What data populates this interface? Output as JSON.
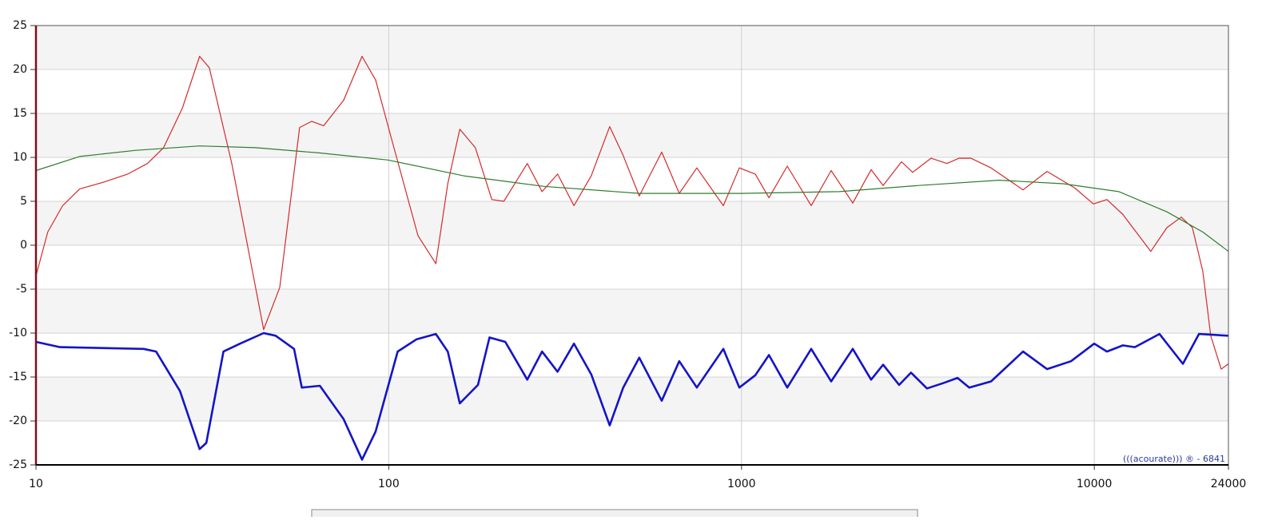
{
  "chart_data": {
    "type": "line",
    "log_x": true,
    "grid": true,
    "xlim": [
      10,
      24000
    ],
    "ylim": [
      -25,
      25
    ],
    "xticks": [
      10,
      100,
      1000,
      10000,
      24000
    ],
    "yticks": [
      -25,
      -20,
      -15,
      -10,
      -5,
      0,
      5,
      10,
      15,
      20,
      25
    ],
    "watermark": "(((acourate))) ® - 6841",
    "series": [
      {
        "color": "#d42a2a",
        "line_width": 1.2,
        "x": [
          10,
          10.8,
          11.9,
          13.3,
          15.6,
          18.2,
          20.7,
          23,
          26,
          29.1,
          31,
          35.9,
          44.2,
          49.1,
          55.9,
          60.5,
          65.4,
          74.5,
          84,
          91.8,
          102,
          121,
          136,
          147,
          159,
          176,
          196,
          212,
          247,
          272,
          301,
          335,
          375,
          423,
          462,
          513,
          594,
          666,
          747,
          888,
          986,
          1094,
          1196,
          1348,
          1576,
          1795,
          2067,
          2330,
          2520,
          2841,
          3055,
          3445,
          3823,
          4135,
          4467,
          5097,
          6281,
          7345,
          8815,
          9940,
          10860,
          12050,
          13370,
          14460,
          16060,
          17640,
          18970,
          20310,
          21380,
          22890,
          24000
        ],
        "values": [
          -3.5,
          1.5,
          4.5,
          6.4,
          7.2,
          8.1,
          9.3,
          11.1,
          15.6,
          21.5,
          20.2,
          9.3,
          -9.6,
          -4.8,
          13.4,
          14.1,
          13.6,
          16.5,
          21.5,
          18.8,
          12,
          1.1,
          -2.1,
          7,
          13.2,
          11.1,
          5.2,
          5,
          9.3,
          6.1,
          8.1,
          4.5,
          7.9,
          13.5,
          10.2,
          5.6,
          10.6,
          5.9,
          8.8,
          4.5,
          8.8,
          8.1,
          5.4,
          9,
          4.5,
          8.5,
          4.8,
          8.6,
          6.8,
          9.5,
          8.3,
          9.9,
          9.3,
          9.9,
          9.9,
          8.8,
          6.3,
          8.4,
          6.5,
          4.7,
          5.2,
          3.5,
          1.1,
          -0.7,
          2,
          3.2,
          2,
          -3,
          -10.3,
          -14.1,
          -13.5
        ]
      },
      {
        "color": "#2e7d2e",
        "line_width": 1.2,
        "x": [
          10,
          13.3,
          19.2,
          29.1,
          42,
          63.8,
          99.5,
          163,
          275,
          513,
          1000,
          1893,
          3185,
          5372,
          8153,
          11740,
          16060,
          20310,
          24000
        ],
        "values": [
          8.5,
          10.1,
          10.8,
          11.3,
          11.1,
          10.5,
          9.7,
          7.9,
          6.7,
          5.9,
          5.9,
          6.1,
          6.8,
          7.4,
          7,
          6.1,
          3.8,
          1.5,
          -0.7
        ]
      },
      {
        "color": "#1414c8",
        "line_width": 2.6,
        "x": [
          10,
          11.7,
          20.2,
          21.9,
          25.6,
          29.1,
          30.4,
          34,
          37.9,
          44.2,
          47.8,
          53.9,
          56.7,
          63.8,
          74.5,
          84,
          91.8,
          106,
          120,
          136,
          147,
          159,
          179,
          193,
          214,
          247,
          272,
          301,
          335,
          375,
          423,
          462,
          513,
          594,
          666,
          747,
          888,
          986,
          1094,
          1196,
          1348,
          1576,
          1795,
          2067,
          2330,
          2520,
          2798,
          3023,
          3355,
          3727,
          4095,
          4421,
          5097,
          6281,
          7345,
          8590,
          9993,
          10860,
          12050,
          13030,
          15300,
          17830,
          19800,
          24000
        ],
        "values": [
          -11,
          -11.6,
          -11.8,
          -12.1,
          -16.6,
          -23.2,
          -22.5,
          -12.1,
          -11.2,
          -10,
          -10.3,
          -11.8,
          -16.2,
          -16,
          -19.8,
          -24.4,
          -21.2,
          -12.1,
          -10.7,
          -10.1,
          -12.1,
          -18,
          -15.9,
          -10.5,
          -11,
          -15.3,
          -12.1,
          -14.4,
          -11.2,
          -14.7,
          -20.5,
          -16.2,
          -12.8,
          -17.7,
          -13.2,
          -16.2,
          -11.8,
          -16.2,
          -14.8,
          -12.5,
          -16.2,
          -11.8,
          -15.5,
          -11.8,
          -15.3,
          -13.6,
          -15.9,
          -14.5,
          -16.3,
          -15.7,
          -15.1,
          -16.2,
          -15.5,
          -12.1,
          -14.1,
          -13.2,
          -11.2,
          -12.1,
          -11.4,
          -11.6,
          -10.1,
          -13.5,
          -10.1,
          -10.3
        ]
      }
    ]
  }
}
